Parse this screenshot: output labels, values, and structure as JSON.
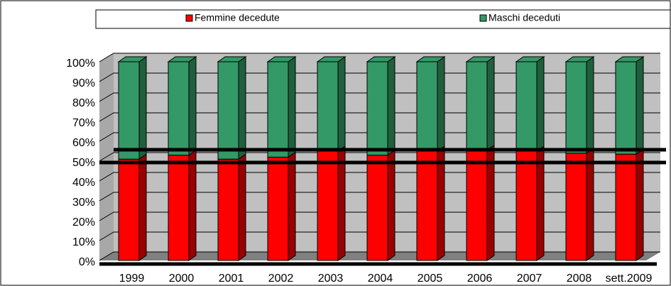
{
  "chart_data": {
    "type": "bar",
    "stacked": true,
    "categories": [
      "1999",
      "2000",
      "2001",
      "2002",
      "2003",
      "2004",
      "2005",
      "2006",
      "2007",
      "2008",
      "sett.2009"
    ],
    "series": [
      {
        "name": "Femmine decedute",
        "color": "#ff0000",
        "values": [
          51,
          53,
          51,
          52,
          55,
          53,
          55,
          55.5,
          55,
          54,
          53.5
        ]
      },
      {
        "name": "Maschi deceduti",
        "color": "#339966",
        "values": [
          49,
          47,
          49,
          48,
          45,
          47,
          45,
          44.5,
          45,
          46,
          46.5
        ]
      }
    ],
    "ylim": [
      0,
      100
    ],
    "yticks": [
      {
        "value": 0,
        "label": "0%"
      },
      {
        "value": 10,
        "label": "10%"
      },
      {
        "value": 20,
        "label": "20%"
      },
      {
        "value": 30,
        "label": "30%"
      },
      {
        "value": 40,
        "label": "40%"
      },
      {
        "value": 50,
        "label": "50%"
      },
      {
        "value": 60,
        "label": "60%"
      },
      {
        "value": 70,
        "label": "70%"
      },
      {
        "value": 80,
        "label": "80%"
      },
      {
        "value": 90,
        "label": "90%"
      },
      {
        "value": 100,
        "label": "100%"
      }
    ],
    "grid": true
  }
}
